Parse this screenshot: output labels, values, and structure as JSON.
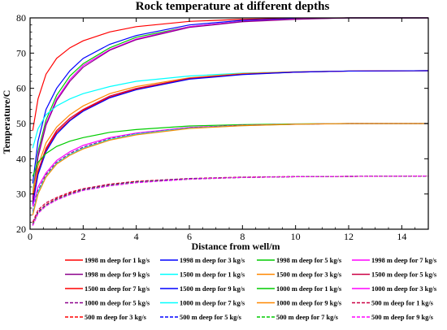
{
  "chart_data": {
    "type": "line",
    "title": "Rock temperature at different depths",
    "xlabel": "Distance from well/m",
    "ylabel": "Temperature/C",
    "xlim": [
      0,
      15
    ],
    "ylim": [
      20,
      80
    ],
    "xticks": [
      0,
      2,
      4,
      6,
      8,
      10,
      12,
      14
    ],
    "yticks": [
      20,
      30,
      40,
      50,
      60,
      70,
      80
    ],
    "grid": false,
    "legend_position": "bottom",
    "series": [
      {
        "name": "1998 m deep for 1 kg/s",
        "color": "#ff0000",
        "dash": "solid",
        "x": [
          0.1,
          0.3,
          0.6,
          1,
          1.5,
          2,
          3,
          4,
          6,
          8,
          10,
          12,
          15
        ],
        "y": [
          48,
          57,
          64,
          68.5,
          71.5,
          73.5,
          76,
          77.5,
          79,
          79.6,
          79.9,
          80,
          80
        ]
      },
      {
        "name": "1998 m deep for 3 kg/s",
        "color": "#0000ff",
        "dash": "solid",
        "x": [
          0.1,
          0.3,
          0.6,
          1,
          1.5,
          2,
          3,
          4,
          6,
          8,
          10,
          12,
          15
        ],
        "y": [
          33,
          45,
          54,
          60,
          65,
          68.5,
          72.5,
          75,
          78,
          79.3,
          79.8,
          80,
          80
        ]
      },
      {
        "name": "1998 m deep for 5 kg/s",
        "color": "#00cc00",
        "dash": "solid",
        "x": [
          0.1,
          0.3,
          0.6,
          1,
          1.5,
          2,
          3,
          4,
          6,
          8,
          10,
          12,
          15
        ],
        "y": [
          30,
          42,
          51,
          58,
          63.5,
          67,
          71.5,
          74.5,
          77.5,
          79,
          79.7,
          80,
          80
        ]
      },
      {
        "name": "1998 m deep for 7 kg/s",
        "color": "#ff00ff",
        "dash": "solid",
        "x": [
          0.1,
          0.3,
          0.6,
          1,
          1.5,
          2,
          3,
          4,
          6,
          8,
          10,
          12,
          15
        ],
        "y": [
          29,
          41,
          50,
          57,
          62.5,
          66.5,
          71,
          74,
          77.5,
          79,
          79.7,
          80,
          80
        ]
      },
      {
        "name": "1998 m deep for 9 kg/s",
        "color": "#8b008b",
        "dash": "solid",
        "x": [
          0.1,
          0.3,
          0.6,
          1,
          1.5,
          2,
          3,
          4,
          6,
          8,
          10,
          12,
          15
        ],
        "y": [
          28.5,
          40.5,
          49.5,
          56.5,
          62,
          66,
          70.8,
          73.8,
          77.3,
          78.9,
          79.6,
          80,
          80
        ]
      },
      {
        "name": "1500 m deep for 1 kg/s",
        "color": "#00ffff",
        "dash": "solid",
        "x": [
          0.1,
          0.3,
          0.6,
          1,
          1.5,
          2,
          3,
          4,
          6,
          8,
          10,
          12,
          15
        ],
        "y": [
          43,
          48.5,
          52.5,
          55,
          57,
          58.5,
          60.5,
          62,
          63.5,
          64.3,
          64.7,
          64.9,
          65
        ]
      },
      {
        "name": "1500 m deep for 3 kg/s",
        "color": "#ff8800",
        "dash": "solid",
        "x": [
          0.1,
          0.3,
          0.6,
          1,
          1.5,
          2,
          3,
          4,
          6,
          8,
          10,
          12,
          15
        ],
        "y": [
          30,
          38,
          44.5,
          49,
          52.5,
          55,
          58.5,
          60.5,
          63,
          64.2,
          64.7,
          64.9,
          65
        ]
      },
      {
        "name": "1500 m deep for 5 kg/s",
        "color": "#cc0044",
        "dash": "solid",
        "x": [
          0.1,
          0.3,
          0.6,
          1,
          1.5,
          2,
          3,
          4,
          6,
          8,
          10,
          12,
          15
        ],
        "y": [
          28,
          36.5,
          43,
          48,
          51.5,
          54,
          57.8,
          60,
          62.8,
          64,
          64.6,
          64.9,
          65
        ]
      },
      {
        "name": "1500 m deep for 7 kg/s",
        "color": "#ff0000",
        "dash": "solid",
        "x": [
          0.1,
          0.3,
          0.6,
          1,
          1.5,
          2,
          3,
          4,
          6,
          8,
          10,
          12,
          15
        ],
        "y": [
          27.5,
          36,
          42.5,
          47.5,
          51,
          53.8,
          57.5,
          59.8,
          62.7,
          64,
          64.6,
          64.9,
          65
        ]
      },
      {
        "name": "1500 m deep for 9 kg/s",
        "color": "#0000ff",
        "dash": "solid",
        "x": [
          0.1,
          0.3,
          0.6,
          1,
          1.5,
          2,
          3,
          4,
          6,
          8,
          10,
          12,
          15
        ],
        "y": [
          27,
          35.5,
          42,
          47,
          50.8,
          53.5,
          57.3,
          59.6,
          62.6,
          63.9,
          64.6,
          64.9,
          65
        ]
      },
      {
        "name": "1000 m deep for 1 kg/s",
        "color": "#00cc00",
        "dash": "solid",
        "x": [
          0.1,
          0.3,
          0.6,
          1,
          1.5,
          2,
          3,
          4,
          6,
          8,
          10,
          12,
          15
        ],
        "y": [
          35,
          39,
          41.5,
          43.5,
          45,
          46,
          47.5,
          48.3,
          49.3,
          49.7,
          49.9,
          50,
          50
        ]
      },
      {
        "name": "1000 m deep for 3 kg/s",
        "color": "#ff00ff",
        "dash": "solid",
        "x": [
          0.1,
          0.3,
          0.6,
          1,
          1.5,
          2,
          3,
          4,
          6,
          8,
          10,
          12,
          15
        ],
        "y": [
          26.5,
          32,
          36,
          39.5,
          42,
          43.8,
          46,
          47.3,
          48.9,
          49.5,
          49.8,
          50,
          50
        ]
      },
      {
        "name": "1000 m deep for 5 kg/s",
        "color": "#8b008b",
        "dash": "dashed",
        "x": [
          0.1,
          0.3,
          0.6,
          1,
          1.5,
          2,
          3,
          4,
          6,
          8,
          10,
          12,
          15
        ],
        "y": [
          25,
          31,
          35.5,
          39,
          41.5,
          43.3,
          45.7,
          47.1,
          48.8,
          49.5,
          49.8,
          50,
          50
        ]
      },
      {
        "name": "1000 m deep for 7 kg/s",
        "color": "#00ffff",
        "dash": "solid",
        "x": [
          0.1,
          0.3,
          0.6,
          1,
          1.5,
          2,
          3,
          4,
          6,
          8,
          10,
          12,
          15
        ],
        "y": [
          24.5,
          30.5,
          35,
          38.7,
          41.2,
          43,
          45.5,
          47,
          48.7,
          49.4,
          49.8,
          50,
          50
        ]
      },
      {
        "name": "1000 m deep for 9 kg/s",
        "color": "#ff8800",
        "dash": "solid",
        "x": [
          0.1,
          0.3,
          0.6,
          1,
          1.5,
          2,
          3,
          4,
          6,
          8,
          10,
          12,
          15
        ],
        "y": [
          24,
          30,
          34.8,
          38.5,
          41,
          42.8,
          45.3,
          46.8,
          48.6,
          49.4,
          49.8,
          50,
          50
        ]
      },
      {
        "name": "500 m deep for 1 kg/s",
        "color": "#cc0044",
        "dash": "dashed",
        "x": [
          0.1,
          0.3,
          0.6,
          1,
          1.5,
          2,
          3,
          4,
          6,
          8,
          10,
          12,
          15
        ],
        "y": [
          22,
          25.5,
          27.5,
          29,
          30.5,
          31.5,
          32.8,
          33.6,
          34.4,
          34.8,
          34.95,
          35,
          35.1
        ]
      },
      {
        "name": "500 m deep for 3 kg/s",
        "color": "#ff0000",
        "dash": "dashed",
        "x": [
          0.1,
          0.3,
          0.6,
          1,
          1.5,
          2,
          3,
          4,
          6,
          8,
          10,
          12,
          15
        ],
        "y": [
          21.5,
          25,
          27,
          28.7,
          30.2,
          31.3,
          32.6,
          33.5,
          34.3,
          34.7,
          34.9,
          35,
          35.1
        ]
      },
      {
        "name": "500 m deep for 5 kg/s",
        "color": "#0000ff",
        "dash": "dashed",
        "x": [
          0.1,
          0.3,
          0.6,
          1,
          1.5,
          2,
          3,
          4,
          6,
          8,
          10,
          12,
          15
        ],
        "y": [
          21.3,
          24.8,
          26.8,
          28.5,
          30,
          31.2,
          32.5,
          33.4,
          34.3,
          34.7,
          34.9,
          35,
          35.1
        ]
      },
      {
        "name": "500 m deep for 7 kg/s",
        "color": "#00cc00",
        "dash": "dashed",
        "x": [
          0.1,
          0.3,
          0.6,
          1,
          1.5,
          2,
          3,
          4,
          6,
          8,
          10,
          12,
          15
        ],
        "y": [
          21.2,
          24.6,
          26.7,
          28.4,
          29.9,
          31.1,
          32.4,
          33.3,
          34.2,
          34.7,
          34.9,
          35,
          35.1
        ]
      },
      {
        "name": "500 m deep for 9 kg/s",
        "color": "#ff00ff",
        "dash": "dashed",
        "x": [
          0.1,
          0.3,
          0.6,
          1,
          1.5,
          2,
          3,
          4,
          6,
          8,
          10,
          12,
          15
        ],
        "y": [
          21,
          24.5,
          26.6,
          28.3,
          29.8,
          31,
          32.3,
          33.2,
          34.2,
          34.7,
          34.9,
          35,
          35.1
        ]
      }
    ]
  }
}
